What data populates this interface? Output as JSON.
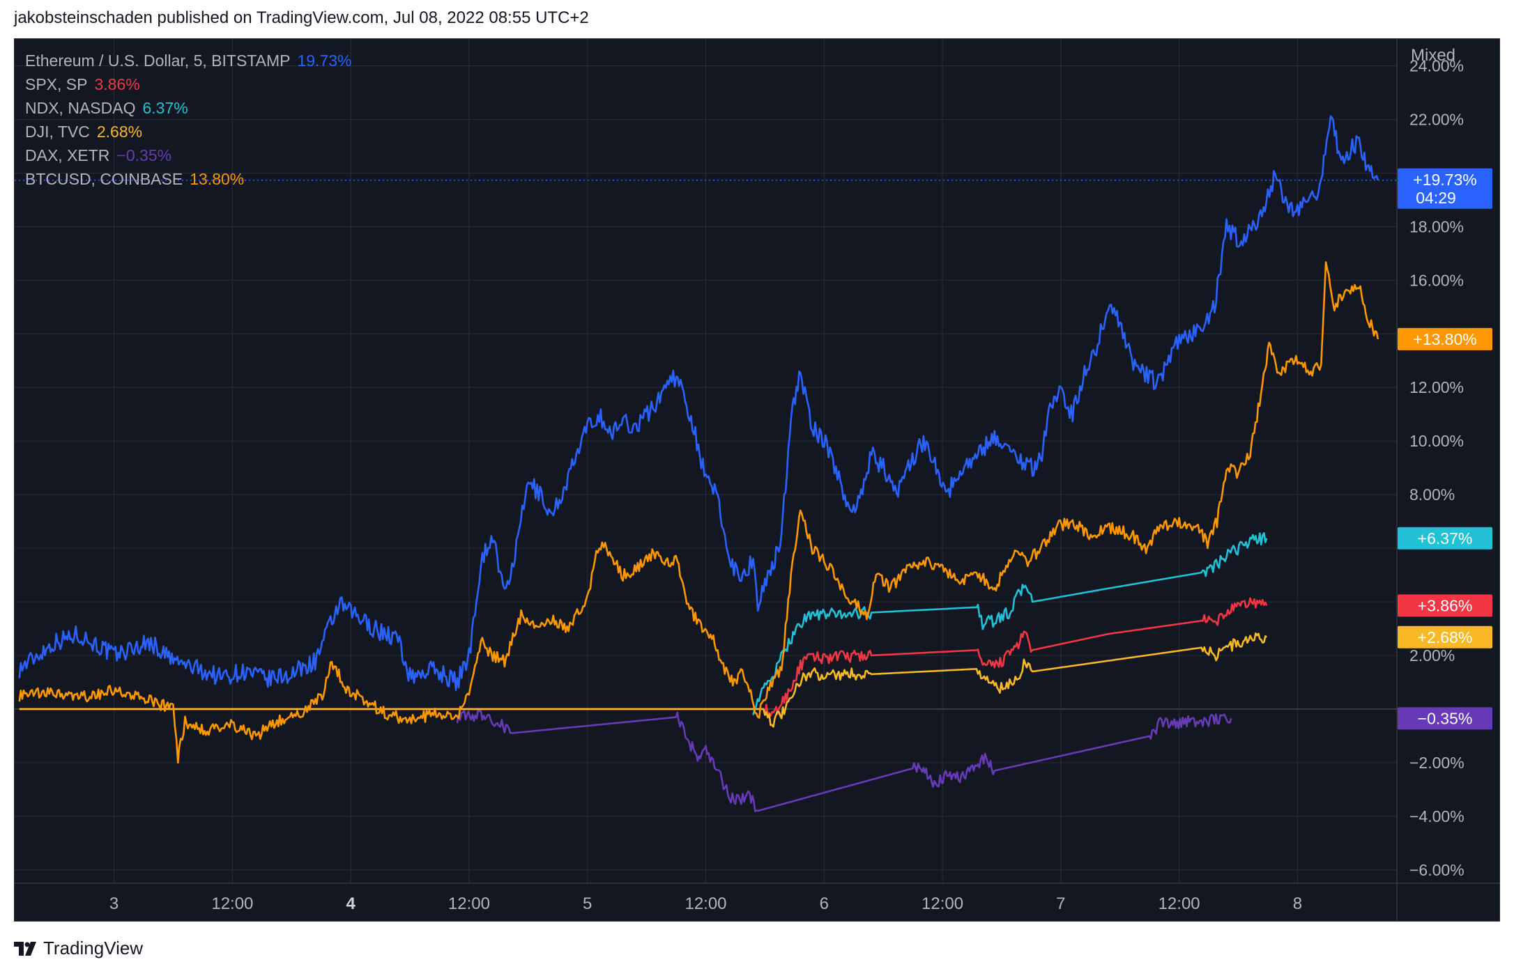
{
  "header": {
    "published": "jakobsteinschaden published on TradingView.com, Jul 08, 2022 08:55 UTC+2"
  },
  "scale_mode": "Mixed",
  "footer": {
    "brand": "TradingView"
  },
  "chart_data": {
    "type": "line",
    "y_axis": {
      "unit": "%",
      "range": [
        -6.5,
        25
      ],
      "ticks": [
        "24.00%",
        "22.00%",
        "18.00%",
        "16.00%",
        "12.00%",
        "10.00%",
        "8.00%",
        "2.00%",
        "−2.00%",
        "−4.00%",
        "−6.00%"
      ],
      "tick_values": [
        24,
        22,
        18,
        16,
        12,
        10,
        8,
        2,
        -2,
        -4,
        -6
      ]
    },
    "x_axis": {
      "ticks": [
        "3",
        "12:00",
        "4",
        "12:00",
        "5",
        "12:00",
        "6",
        "12:00",
        "7",
        "12:00",
        "8"
      ],
      "tick_times_days": [
        3,
        3.5,
        4,
        4.5,
        5,
        5.5,
        6,
        6.5,
        7,
        7.5,
        8
      ],
      "range_days": [
        2.58,
        8.42
      ]
    },
    "grid": true,
    "legend_position": "top-left",
    "current_time_label": "04:29",
    "series": [
      {
        "name": "Ethereum / U.S. Dollar, 5, BITSTAMP",
        "value_label": "19.73%",
        "badge": "+19.73%",
        "last": 19.73,
        "color": "#2962ff",
        "points": [
          [
            2.6,
            1.5
          ],
          [
            2.75,
            2.5
          ],
          [
            2.85,
            2.8
          ],
          [
            3.0,
            2.0
          ],
          [
            3.15,
            2.5
          ],
          [
            3.25,
            1.8
          ],
          [
            3.35,
            1.5
          ],
          [
            3.45,
            1.2
          ],
          [
            3.55,
            1.4
          ],
          [
            3.65,
            1.1
          ],
          [
            3.75,
            1.3
          ],
          [
            3.85,
            1.8
          ],
          [
            3.95,
            3.9
          ],
          [
            4.0,
            3.6
          ],
          [
            4.1,
            3.0
          ],
          [
            4.2,
            2.6
          ],
          [
            4.25,
            1.2
          ],
          [
            4.35,
            1.5
          ],
          [
            4.45,
            1.0
          ],
          [
            4.5,
            2.0
          ],
          [
            4.55,
            5.5
          ],
          [
            4.6,
            6.5
          ],
          [
            4.65,
            4.2
          ],
          [
            4.7,
            6.0
          ],
          [
            4.75,
            8.5
          ],
          [
            4.8,
            8.0
          ],
          [
            4.85,
            7.2
          ],
          [
            4.9,
            8.2
          ],
          [
            5.0,
            10.5
          ],
          [
            5.05,
            11.0
          ],
          [
            5.1,
            10.2
          ],
          [
            5.15,
            10.8
          ],
          [
            5.2,
            10.5
          ],
          [
            5.3,
            11.5
          ],
          [
            5.35,
            12.5
          ],
          [
            5.4,
            12.0
          ],
          [
            5.45,
            10.5
          ],
          [
            5.5,
            8.5
          ],
          [
            5.55,
            8.0
          ],
          [
            5.6,
            5.5
          ],
          [
            5.65,
            5.0
          ],
          [
            5.7,
            5.5
          ],
          [
            5.72,
            4.0
          ],
          [
            5.78,
            5.2
          ],
          [
            5.82,
            6.5
          ],
          [
            5.86,
            11.0
          ],
          [
            5.9,
            12.5
          ],
          [
            5.95,
            10.5
          ],
          [
            6.0,
            10.0
          ],
          [
            6.05,
            9.0
          ],
          [
            6.1,
            7.5
          ],
          [
            6.15,
            7.8
          ],
          [
            6.2,
            9.5
          ],
          [
            6.25,
            9.0
          ],
          [
            6.3,
            8.0
          ],
          [
            6.35,
            9.0
          ],
          [
            6.42,
            10.0
          ],
          [
            6.48,
            9.0
          ],
          [
            6.52,
            8.0
          ],
          [
            6.58,
            9.0
          ],
          [
            6.65,
            9.5
          ],
          [
            6.72,
            10.2
          ],
          [
            6.8,
            9.5
          ],
          [
            6.88,
            9.0
          ],
          [
            6.92,
            9.5
          ],
          [
            6.96,
            11.5
          ],
          [
            7.0,
            11.8
          ],
          [
            7.05,
            11.0
          ],
          [
            7.1,
            12.5
          ],
          [
            7.15,
            13.5
          ],
          [
            7.2,
            15.0
          ],
          [
            7.25,
            14.5
          ],
          [
            7.3,
            13.0
          ],
          [
            7.35,
            12.5
          ],
          [
            7.4,
            12.2
          ],
          [
            7.45,
            12.8
          ],
          [
            7.5,
            13.8
          ],
          [
            7.55,
            14.0
          ],
          [
            7.6,
            14.2
          ],
          [
            7.65,
            15.0
          ],
          [
            7.7,
            18.0
          ],
          [
            7.75,
            17.5
          ],
          [
            7.8,
            17.8
          ],
          [
            7.85,
            18.5
          ],
          [
            7.9,
            19.8
          ],
          [
            7.95,
            19.0
          ],
          [
            8.0,
            18.5
          ],
          [
            8.05,
            19.0
          ],
          [
            8.1,
            19.5
          ],
          [
            8.14,
            22.4
          ],
          [
            8.18,
            20.5
          ],
          [
            8.22,
            20.8
          ],
          [
            8.26,
            21.2
          ],
          [
            8.3,
            20.0
          ],
          [
            8.34,
            19.73
          ]
        ]
      },
      {
        "name": "SPX, SP",
        "value_label": "3.86%",
        "badge": "+3.86%",
        "last": 3.86,
        "color": "#f23645",
        "points": [
          [
            2.6,
            0
          ],
          [
            5.75,
            0
          ],
          [
            5.78,
            -0.3
          ],
          [
            5.82,
            0.2
          ],
          [
            5.86,
            0.8
          ],
          [
            5.9,
            1.6
          ],
          [
            5.93,
            1.9
          ],
          [
            6.2,
            2.0
          ],
          [
            6.65,
            2.2
          ],
          [
            6.67,
            1.6
          ],
          [
            6.72,
            1.6
          ],
          [
            6.78,
            2.0
          ],
          [
            6.85,
            2.8
          ],
          [
            6.88,
            2.2
          ],
          [
            7.2,
            2.8
          ],
          [
            7.6,
            3.3
          ],
          [
            7.65,
            3.2
          ],
          [
            7.7,
            3.6
          ],
          [
            7.8,
            4.0
          ],
          [
            7.87,
            3.86
          ]
        ]
      },
      {
        "name": "NDX, NASDAQ",
        "value_label": "6.37%",
        "badge": "+6.37%",
        "last": 6.37,
        "color": "#22c1d6",
        "points": [
          [
            5.7,
            0
          ],
          [
            5.75,
            0.8
          ],
          [
            5.8,
            1.5
          ],
          [
            5.85,
            2.5
          ],
          [
            5.9,
            3.2
          ],
          [
            5.93,
            3.5
          ],
          [
            6.2,
            3.6
          ],
          [
            6.65,
            3.8
          ],
          [
            6.67,
            3.2
          ],
          [
            6.72,
            3.3
          ],
          [
            6.78,
            3.6
          ],
          [
            6.85,
            4.7
          ],
          [
            6.88,
            4.0
          ],
          [
            7.2,
            4.5
          ],
          [
            7.6,
            5.1
          ],
          [
            7.65,
            5.3
          ],
          [
            7.7,
            5.7
          ],
          [
            7.8,
            6.3
          ],
          [
            7.87,
            6.37
          ]
        ]
      },
      {
        "name": "DJI, TVC",
        "value_label": "2.68%",
        "badge": "+2.68%",
        "last": 2.68,
        "color": "#f9b825",
        "points": [
          [
            2.6,
            0
          ],
          [
            5.75,
            0
          ],
          [
            5.78,
            -0.5
          ],
          [
            5.82,
            -0.2
          ],
          [
            5.86,
            0.3
          ],
          [
            5.9,
            1.1
          ],
          [
            5.93,
            1.3
          ],
          [
            6.2,
            1.3
          ],
          [
            6.65,
            1.5
          ],
          [
            6.67,
            1.2
          ],
          [
            6.72,
            0.9
          ],
          [
            6.76,
            0.7
          ],
          [
            6.82,
            1.2
          ],
          [
            6.85,
            1.8
          ],
          [
            6.88,
            1.4
          ],
          [
            7.2,
            1.8
          ],
          [
            7.6,
            2.3
          ],
          [
            7.65,
            2.0
          ],
          [
            7.7,
            2.3
          ],
          [
            7.8,
            2.6
          ],
          [
            7.87,
            2.68
          ]
        ]
      },
      {
        "name": "DAX, XETR",
        "value_label": "−0.35%",
        "badge": "−0.35%",
        "last": -0.35,
        "color": "#673ab7",
        "points": [
          [
            4.45,
            -0.3
          ],
          [
            4.55,
            -0.2
          ],
          [
            4.62,
            -0.5
          ],
          [
            4.68,
            -0.9
          ],
          [
            5.38,
            -0.3
          ],
          [
            5.42,
            -1.0
          ],
          [
            5.46,
            -1.8
          ],
          [
            5.5,
            -1.5
          ],
          [
            5.55,
            -2.3
          ],
          [
            5.6,
            -3.3
          ],
          [
            5.65,
            -3.4
          ],
          [
            5.68,
            -3.2
          ],
          [
            5.72,
            -3.8
          ],
          [
            6.38,
            -2.2
          ],
          [
            6.42,
            -2.3
          ],
          [
            6.46,
            -2.8
          ],
          [
            6.52,
            -2.5
          ],
          [
            6.58,
            -2.6
          ],
          [
            6.62,
            -2.2
          ],
          [
            6.68,
            -1.8
          ],
          [
            6.72,
            -2.3
          ],
          [
            7.38,
            -1.0
          ],
          [
            7.42,
            -0.5
          ],
          [
            7.48,
            -0.6
          ],
          [
            7.55,
            -0.4
          ],
          [
            7.6,
            -0.5
          ],
          [
            7.68,
            -0.3
          ],
          [
            7.72,
            -0.35
          ]
        ]
      },
      {
        "name": "BTCUSD, COINBASE",
        "value_label": "13.80%",
        "badge": "+13.80%",
        "last": 13.8,
        "color": "#ff9800",
        "points": [
          [
            2.6,
            0.5
          ],
          [
            2.75,
            0.6
          ],
          [
            2.85,
            0.4
          ],
          [
            3.0,
            0.7
          ],
          [
            3.15,
            0.3
          ],
          [
            3.25,
            0.0
          ],
          [
            3.27,
            -1.8
          ],
          [
            3.3,
            -0.5
          ],
          [
            3.4,
            -0.8
          ],
          [
            3.5,
            -0.6
          ],
          [
            3.6,
            -1.0
          ],
          [
            3.7,
            -0.4
          ],
          [
            3.78,
            -0.2
          ],
          [
            3.88,
            0.5
          ],
          [
            3.92,
            1.8
          ],
          [
            3.98,
            0.8
          ],
          [
            4.05,
            0.4
          ],
          [
            4.15,
            -0.2
          ],
          [
            4.25,
            -0.4
          ],
          [
            4.35,
            -0.2
          ],
          [
            4.45,
            -0.3
          ],
          [
            4.5,
            0.5
          ],
          [
            4.55,
            2.5
          ],
          [
            4.6,
            2.0
          ],
          [
            4.65,
            1.8
          ],
          [
            4.72,
            3.5
          ],
          [
            4.8,
            3.0
          ],
          [
            4.85,
            3.3
          ],
          [
            4.92,
            3.0
          ],
          [
            5.0,
            4.2
          ],
          [
            5.05,
            6.2
          ],
          [
            5.1,
            5.8
          ],
          [
            5.15,
            5.0
          ],
          [
            5.2,
            5.2
          ],
          [
            5.28,
            5.8
          ],
          [
            5.32,
            5.5
          ],
          [
            5.38,
            5.5
          ],
          [
            5.42,
            4.0
          ],
          [
            5.48,
            3.0
          ],
          [
            5.52,
            2.8
          ],
          [
            5.58,
            1.5
          ],
          [
            5.62,
            1.0
          ],
          [
            5.66,
            1.4
          ],
          [
            5.72,
            -0.3
          ],
          [
            5.78,
            1.0
          ],
          [
            5.82,
            1.5
          ],
          [
            5.86,
            5.0
          ],
          [
            5.9,
            7.5
          ],
          [
            5.95,
            6.0
          ],
          [
            6.0,
            5.5
          ],
          [
            6.05,
            5.0
          ],
          [
            6.1,
            4.0
          ],
          [
            6.15,
            3.8
          ],
          [
            6.18,
            3.5
          ],
          [
            6.22,
            5.0
          ],
          [
            6.28,
            4.5
          ],
          [
            6.35,
            5.2
          ],
          [
            6.42,
            5.5
          ],
          [
            6.5,
            5.2
          ],
          [
            6.58,
            4.8
          ],
          [
            6.65,
            5.0
          ],
          [
            6.72,
            4.5
          ],
          [
            6.8,
            5.8
          ],
          [
            6.86,
            5.5
          ],
          [
            6.92,
            6.0
          ],
          [
            6.98,
            6.8
          ],
          [
            7.05,
            7.0
          ],
          [
            7.12,
            6.5
          ],
          [
            7.2,
            6.8
          ],
          [
            7.3,
            6.5
          ],
          [
            7.36,
            6.0
          ],
          [
            7.42,
            6.8
          ],
          [
            7.5,
            7.0
          ],
          [
            7.58,
            6.8
          ],
          [
            7.62,
            6.2
          ],
          [
            7.66,
            7.0
          ],
          [
            7.7,
            9.0
          ],
          [
            7.75,
            8.8
          ],
          [
            7.8,
            9.5
          ],
          [
            7.84,
            11.5
          ],
          [
            7.88,
            13.5
          ],
          [
            7.92,
            12.5
          ],
          [
            7.96,
            12.8
          ],
          [
            8.0,
            13.0
          ],
          [
            8.05,
            12.6
          ],
          [
            8.1,
            12.8
          ],
          [
            8.12,
            16.8
          ],
          [
            8.15,
            15.0
          ],
          [
            8.2,
            15.5
          ],
          [
            8.26,
            15.8
          ],
          [
            8.3,
            14.5
          ],
          [
            8.34,
            13.8
          ]
        ]
      }
    ]
  }
}
